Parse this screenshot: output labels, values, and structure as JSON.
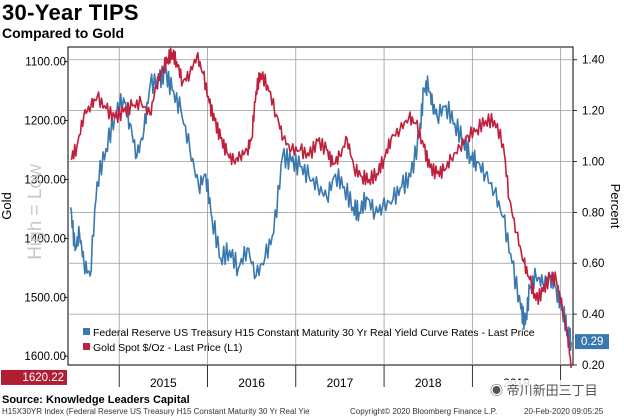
{
  "header": {
    "title": "30-Year TIPS",
    "subtitle": "Compared to Gold"
  },
  "footer": {
    "source": "Source: Knowledge Leaders Capital",
    "index_label": "H15X30YR Index (Federal Reserve US Treasury H15 Constant Maturity 30 Yr Real Yie",
    "copyright": "Copyright© 2020 Bloomberg Finance L.P.",
    "date": "20-Feb-2020 09:05:25",
    "watermark": "帝川新田三丁目"
  },
  "chart_data": {
    "type": "line",
    "title": "30-Year TIPS",
    "subtitle": "Compared to Gold",
    "x": {
      "ticks": [
        "2015",
        "2016",
        "2017",
        "2018",
        "2019"
      ],
      "range": [
        2014.42,
        2020.14
      ]
    },
    "y_left": {
      "label": "Gold",
      "inverted": true,
      "range": [
        1075,
        1615
      ],
      "ticks": [
        "1100.00",
        "1200.00",
        "1300.00",
        "1400.00",
        "1500.00",
        "1600.00"
      ],
      "tick_values": [
        1100,
        1200,
        1300,
        1400,
        1500,
        1600
      ],
      "annotation": "High = Low"
    },
    "y_right": {
      "label": "Percent",
      "range": [
        0.2,
        1.45
      ],
      "ticks": [
        "1.40",
        "1.20",
        "1.00",
        "0.80",
        "0.60",
        "0.40",
        "0.20"
      ],
      "tick_values": [
        1.4,
        1.2,
        1.0,
        0.8,
        0.6,
        0.4,
        0.2
      ]
    },
    "series": [
      {
        "name": "Federal Reserve US Treasury H15 Constant Maturity 30 Yr Real Yield Curve Rates - Last Price",
        "axis": "right",
        "color": "#3a78b0",
        "last_value": "0.29",
        "points": [
          [
            2014.45,
            0.82
          ],
          [
            2014.5,
            0.65
          ],
          [
            2014.55,
            0.72
          ],
          [
            2014.6,
            0.6
          ],
          [
            2014.67,
            0.55
          ],
          [
            2014.75,
            0.92
          ],
          [
            2014.85,
            1.05
          ],
          [
            2014.95,
            1.18
          ],
          [
            2015.05,
            1.25
          ],
          [
            2015.12,
            1.15
          ],
          [
            2015.2,
            1.02
          ],
          [
            2015.28,
            1.12
          ],
          [
            2015.35,
            1.3
          ],
          [
            2015.45,
            1.32
          ],
          [
            2015.52,
            1.35
          ],
          [
            2015.6,
            1.28
          ],
          [
            2015.7,
            1.2
          ],
          [
            2015.8,
            1.05
          ],
          [
            2015.9,
            0.9
          ],
          [
            2015.98,
            0.95
          ],
          [
            2016.05,
            0.78
          ],
          [
            2016.15,
            0.62
          ],
          [
            2016.25,
            0.65
          ],
          [
            2016.35,
            0.58
          ],
          [
            2016.45,
            0.66
          ],
          [
            2016.55,
            0.55
          ],
          [
            2016.65,
            0.62
          ],
          [
            2016.75,
            0.72
          ],
          [
            2016.85,
            1.02
          ],
          [
            2016.95,
            1.0
          ],
          [
            2017.05,
            0.98
          ],
          [
            2017.15,
            0.94
          ],
          [
            2017.25,
            0.9
          ],
          [
            2017.35,
            0.86
          ],
          [
            2017.45,
            0.95
          ],
          [
            2017.55,
            0.9
          ],
          [
            2017.65,
            0.82
          ],
          [
            2017.72,
            0.8
          ],
          [
            2017.8,
            0.86
          ],
          [
            2017.9,
            0.8
          ],
          [
            2017.98,
            0.82
          ],
          [
            2018.1,
            0.85
          ],
          [
            2018.2,
            0.9
          ],
          [
            2018.3,
            0.94
          ],
          [
            2018.4,
            1.1
          ],
          [
            2018.45,
            1.28
          ],
          [
            2018.5,
            1.3
          ],
          [
            2018.55,
            1.22
          ],
          [
            2018.6,
            1.18
          ],
          [
            2018.7,
            1.22
          ],
          [
            2018.8,
            1.15
          ],
          [
            2018.9,
            1.08
          ],
          [
            2018.98,
            1.02
          ],
          [
            2019.05,
            1.0
          ],
          [
            2019.15,
            0.95
          ],
          [
            2019.25,
            0.88
          ],
          [
            2019.35,
            0.78
          ],
          [
            2019.45,
            0.6
          ],
          [
            2019.55,
            0.42
          ],
          [
            2019.6,
            0.36
          ],
          [
            2019.65,
            0.5
          ],
          [
            2019.72,
            0.55
          ],
          [
            2019.8,
            0.52
          ],
          [
            2019.88,
            0.55
          ],
          [
            2019.95,
            0.5
          ],
          [
            2020.02,
            0.42
          ],
          [
            2020.08,
            0.33
          ],
          [
            2020.12,
            0.29
          ]
        ]
      },
      {
        "name": "Gold Spot $/Oz - Last Price (L1)",
        "axis": "left",
        "color": "#c0203c",
        "last_value": "1620.22",
        "points": [
          [
            2014.45,
            1265
          ],
          [
            2014.52,
            1245
          ],
          [
            2014.6,
            1190
          ],
          [
            2014.68,
            1175
          ],
          [
            2014.75,
            1160
          ],
          [
            2014.85,
            1180
          ],
          [
            2014.95,
            1195
          ],
          [
            2015.05,
            1185
          ],
          [
            2015.15,
            1175
          ],
          [
            2015.25,
            1170
          ],
          [
            2015.35,
            1190
          ],
          [
            2015.42,
            1140
          ],
          [
            2015.5,
            1110
          ],
          [
            2015.55,
            1095
          ],
          [
            2015.6,
            1085
          ],
          [
            2015.65,
            1100
          ],
          [
            2015.72,
            1135
          ],
          [
            2015.8,
            1120
          ],
          [
            2015.88,
            1090
          ],
          [
            2015.95,
            1120
          ],
          [
            2016.02,
            1170
          ],
          [
            2016.08,
            1200
          ],
          [
            2016.15,
            1230
          ],
          [
            2016.22,
            1255
          ],
          [
            2016.3,
            1270
          ],
          [
            2016.37,
            1260
          ],
          [
            2016.45,
            1250
          ],
          [
            2016.5,
            1230
          ],
          [
            2016.55,
            1150
          ],
          [
            2016.6,
            1120
          ],
          [
            2016.68,
            1140
          ],
          [
            2016.78,
            1190
          ],
          [
            2016.86,
            1230
          ],
          [
            2016.95,
            1250
          ],
          [
            2017.05,
            1250
          ],
          [
            2017.15,
            1260
          ],
          [
            2017.25,
            1235
          ],
          [
            2017.35,
            1250
          ],
          [
            2017.42,
            1275
          ],
          [
            2017.5,
            1260
          ],
          [
            2017.58,
            1230
          ],
          [
            2017.66,
            1280
          ],
          [
            2017.75,
            1295
          ],
          [
            2017.83,
            1300
          ],
          [
            2017.92,
            1290
          ],
          [
            2018.0,
            1265
          ],
          [
            2018.08,
            1230
          ],
          [
            2018.18,
            1215
          ],
          [
            2018.28,
            1195
          ],
          [
            2018.36,
            1205
          ],
          [
            2018.45,
            1245
          ],
          [
            2018.52,
            1280
          ],
          [
            2018.6,
            1290
          ],
          [
            2018.68,
            1285
          ],
          [
            2018.76,
            1265
          ],
          [
            2018.86,
            1245
          ],
          [
            2018.95,
            1225
          ],
          [
            2019.05,
            1215
          ],
          [
            2019.15,
            1200
          ],
          [
            2019.25,
            1200
          ],
          [
            2019.35,
            1240
          ],
          [
            2019.42,
            1335
          ],
          [
            2019.5,
            1390
          ],
          [
            2019.58,
            1440
          ],
          [
            2019.65,
            1470
          ],
          [
            2019.72,
            1505
          ],
          [
            2019.8,
            1490
          ],
          [
            2019.88,
            1465
          ],
          [
            2019.95,
            1470
          ],
          [
            2020.02,
            1520
          ],
          [
            2020.08,
            1565
          ],
          [
            2020.12,
            1620
          ]
        ]
      }
    ],
    "legend": {
      "placement": "bottom-right",
      "entries": [
        "Federal Reserve US Treasury H15 Constant Maturity 30 Yr Real Yield Curve Rates - Last Price",
        "Gold Spot $/Oz - Last Price (L1)"
      ]
    },
    "last_value_labels": {
      "gold": "1620.22",
      "tips": "0.29"
    }
  }
}
